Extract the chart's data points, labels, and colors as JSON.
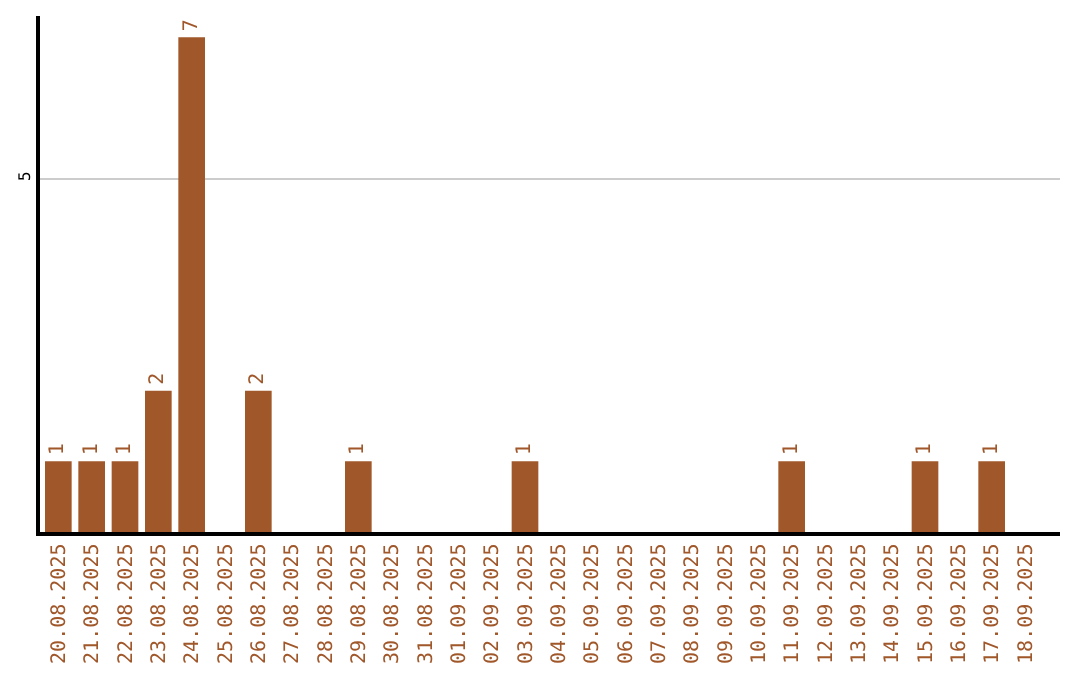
{
  "chart_data": {
    "type": "bar",
    "categories": [
      "20.08.2025",
      "21.08.2025",
      "22.08.2025",
      "23.08.2025",
      "24.08.2025",
      "25.08.2025",
      "26.08.2025",
      "27.08.2025",
      "28.08.2025",
      "29.08.2025",
      "30.08.2025",
      "31.08.2025",
      "01.09.2025",
      "02.09.2025",
      "03.09.2025",
      "04.09.2025",
      "05.09.2025",
      "06.09.2025",
      "07.09.2025",
      "08.09.2025",
      "09.09.2025",
      "10.09.2025",
      "11.09.2025",
      "12.09.2025",
      "13.09.2025",
      "14.09.2025",
      "15.09.2025",
      "16.09.2025",
      "17.09.2025",
      "18.09.2025"
    ],
    "values": [
      1,
      1,
      1,
      2,
      7,
      0,
      2,
      0,
      0,
      1,
      0,
      0,
      0,
      0,
      1,
      0,
      0,
      0,
      0,
      0,
      0,
      0,
      1,
      0,
      0,
      0,
      1,
      0,
      1,
      0
    ],
    "value_labels": [
      "1",
      "1",
      "1",
      "2",
      "7",
      null,
      "2",
      null,
      null,
      "1",
      null,
      null,
      null,
      null,
      "1",
      null,
      null,
      null,
      null,
      null,
      null,
      null,
      "1",
      null,
      null,
      null,
      "1",
      null,
      "1",
      null
    ],
    "color": "#a0572a",
    "ylim": [
      0,
      7.3
    ],
    "yticks": [
      5
    ],
    "grid": "y",
    "legend": false
  }
}
